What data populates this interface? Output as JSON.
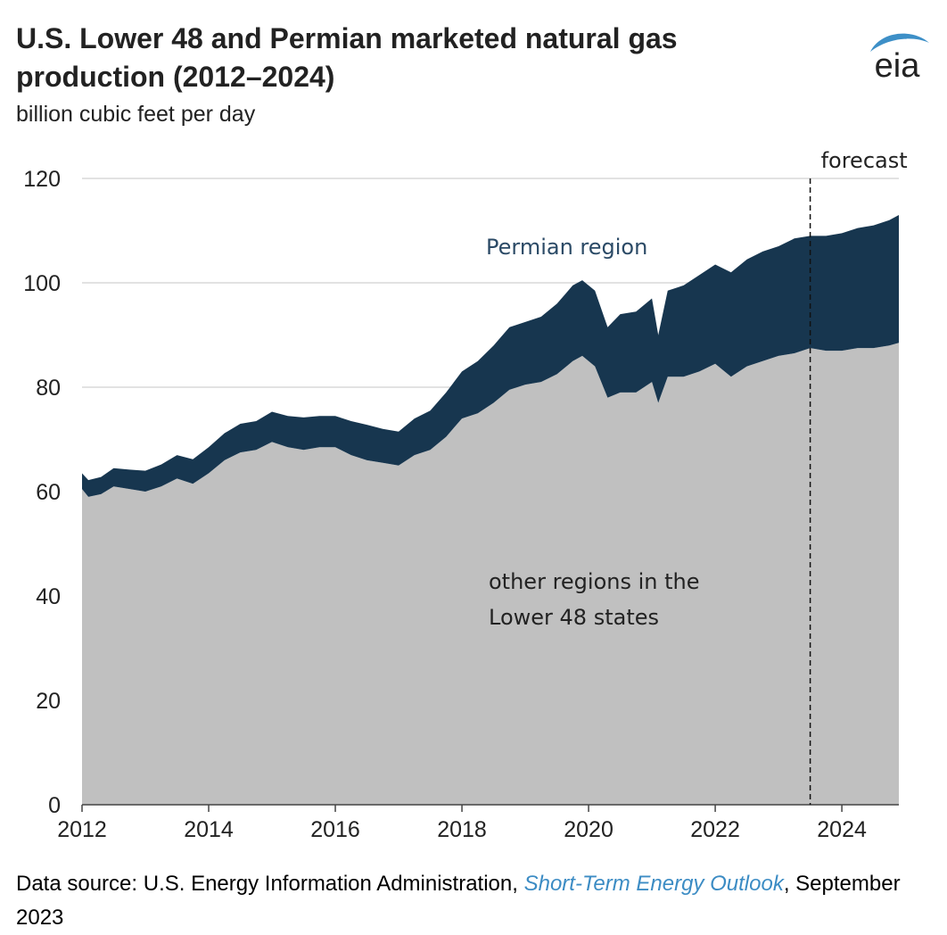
{
  "title": "U.S. Lower 48 and Permian marketed natural gas production (2012–2024)",
  "subtitle": "billion cubic feet per day",
  "logo_text": "eia",
  "source": {
    "prefix": "Data source: U.S. Energy Information Administration, ",
    "link": "Short-Term Energy Outlook",
    "suffix": ", September 2023"
  },
  "colors": {
    "other_regions": "#c0c0c0",
    "permian": "#17364f",
    "grid": "#d9d9d9",
    "link": "#3c8cc4",
    "logo_blue": "#3d8fc7"
  },
  "chart_data": {
    "type": "area",
    "stacked": true,
    "xlim": [
      2012,
      2024.9
    ],
    "ylim": [
      0,
      120
    ],
    "yticks": [
      0,
      20,
      40,
      60,
      80,
      100,
      120
    ],
    "xticks": [
      2012,
      2014,
      2016,
      2018,
      2020,
      2022,
      2024
    ],
    "grid": "horizontal",
    "forecast_start": 2023.5,
    "annotations": {
      "forecast": "forecast",
      "permian": "Permian region",
      "other": "other regions in the Lower 48 states"
    },
    "x": [
      2012.0,
      2012.1,
      2012.3,
      2012.5,
      2012.75,
      2013.0,
      2013.25,
      2013.5,
      2013.75,
      2014.0,
      2014.25,
      2014.5,
      2014.75,
      2015.0,
      2015.25,
      2015.5,
      2015.75,
      2016.0,
      2016.25,
      2016.5,
      2016.75,
      2017.0,
      2017.25,
      2017.5,
      2017.75,
      2018.0,
      2018.25,
      2018.5,
      2018.75,
      2019.0,
      2019.25,
      2019.5,
      2019.75,
      2019.9,
      2020.1,
      2020.3,
      2020.5,
      2020.75,
      2021.0,
      2021.1,
      2021.25,
      2021.5,
      2021.75,
      2022.0,
      2022.25,
      2022.5,
      2022.75,
      2023.0,
      2023.25,
      2023.5,
      2023.75,
      2024.0,
      2024.25,
      2024.5,
      2024.75,
      2024.9
    ],
    "series": [
      {
        "name": "other regions in the Lower 48 states",
        "values": [
          60.5,
          59.0,
          59.5,
          61.0,
          60.5,
          60.0,
          61.0,
          62.5,
          61.5,
          63.5,
          66.0,
          67.5,
          68.0,
          69.5,
          68.5,
          68.0,
          68.5,
          68.5,
          67.0,
          66.0,
          65.5,
          65.0,
          67.0,
          68.0,
          70.5,
          74.0,
          75.0,
          77.0,
          79.5,
          80.5,
          81.0,
          82.5,
          85.0,
          86.0,
          84.0,
          78.0,
          79.0,
          79.0,
          81.0,
          77.0,
          82.0,
          82.0,
          83.0,
          84.5,
          82.0,
          84.0,
          85.0,
          86.0,
          86.5,
          87.5,
          87.0,
          87.0,
          87.5,
          87.5,
          88.0,
          88.5
        ]
      },
      {
        "name": "Permian region",
        "values": [
          3.0,
          3.2,
          3.3,
          3.5,
          3.7,
          4.0,
          4.2,
          4.5,
          4.7,
          5.0,
          5.2,
          5.5,
          5.5,
          5.8,
          6.0,
          6.2,
          6.0,
          6.0,
          6.5,
          6.8,
          6.5,
          6.5,
          7.0,
          7.5,
          8.5,
          9.0,
          10.0,
          11.0,
          12.0,
          12.0,
          12.5,
          13.5,
          14.5,
          14.5,
          14.5,
          13.5,
          15.0,
          15.5,
          16.0,
          13.0,
          16.5,
          17.5,
          18.5,
          19.0,
          20.0,
          20.5,
          21.0,
          21.0,
          22.0,
          21.5,
          22.0,
          22.5,
          23.0,
          23.5,
          24.0,
          24.5
        ]
      }
    ]
  }
}
